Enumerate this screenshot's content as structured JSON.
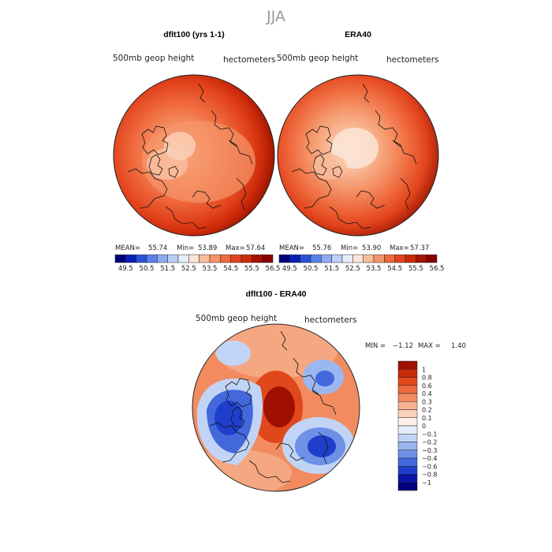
{
  "page": {
    "season": "JJA"
  },
  "panels": [
    {
      "title": "dflt100 (yrs 1-1)",
      "variable": "500mb geop height",
      "units": "hectometers",
      "stats": {
        "mean_label": "MEAN=",
        "mean": "55.74",
        "min_label": "Min=",
        "min": "53.89",
        "max_label": "Max=",
        "max": "57.64"
      }
    },
    {
      "title": "ERA40",
      "variable": "500mb geop height",
      "units": "hectometers",
      "stats": {
        "mean_label": "MEAN=",
        "mean": "55.76",
        "min_label": "Min=",
        "min": "53.90",
        "max_label": "Max=",
        "max": "57.37"
      }
    }
  ],
  "height_colorbar": {
    "ticks": [
      "49.5",
      "50.5",
      "51.5",
      "52.5",
      "53.5",
      "54.5",
      "55.5",
      "56.5"
    ],
    "colors": [
      "#00007a",
      "#0a1fb8",
      "#2a52d8",
      "#5a80ea",
      "#8eaaf2",
      "#bccff7",
      "#e6eefc",
      "#fce4d6",
      "#f9bd9c",
      "#f59569",
      "#ef6a3e",
      "#e2431c",
      "#cc2a0a",
      "#a81000",
      "#850000"
    ]
  },
  "diff_panel": {
    "title": "dflt100 - ERA40",
    "variable": "500mb geop height",
    "units": "hectometers",
    "stats": {
      "min_label": "MIN =",
      "min": "−1.12",
      "max_label": "MAX =",
      "max": "1.40"
    }
  },
  "diff_colorbar": {
    "levels": [
      "1",
      "0.8",
      "0.6",
      "0.4",
      "0.3",
      "0.2",
      "0.1",
      "0",
      "−0.1",
      "−0.2",
      "−0.3",
      "−0.4",
      "−0.6",
      "−0.8",
      "−1"
    ],
    "colors": [
      "#a01000",
      "#c82a0a",
      "#e0481c",
      "#ee6a3c",
      "#f28c60",
      "#f7b290",
      "#fbd2ba",
      "#fdf0e6",
      "#e6eefc",
      "#c2d4f6",
      "#9cb6f0",
      "#6e90e6",
      "#4268dc",
      "#1e3ecc",
      "#0a12a6",
      "#00007a"
    ]
  }
}
